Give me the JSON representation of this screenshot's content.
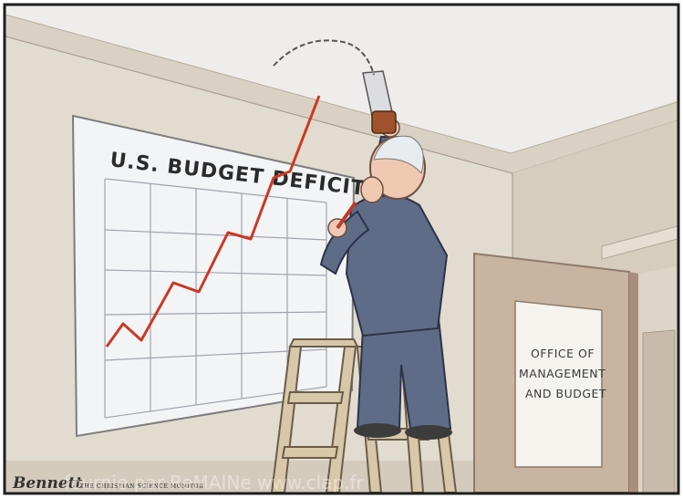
{
  "chart": {
    "title": "U.S. BUDGET DEFICIT"
  },
  "door": {
    "sign_line1": "OFFICE OF",
    "sign_line2": "MANAGEMENT",
    "sign_line3": "AND BUDGET"
  },
  "credit": {
    "signature": "Bennett",
    "publication": "THE CHRISTIAN SCIENCE MONITOR",
    "watermark": "fournie par ReMAINe www.clap.fr"
  },
  "colors": {
    "frame": "#1f1f1f",
    "wall": "#e2dbcf",
    "ceiling": "#eeecea",
    "deficit_line": "#c83a26",
    "suit": "#5e6c88",
    "door": "#c9b4a2",
    "ladder": "#d8c7a8"
  }
}
